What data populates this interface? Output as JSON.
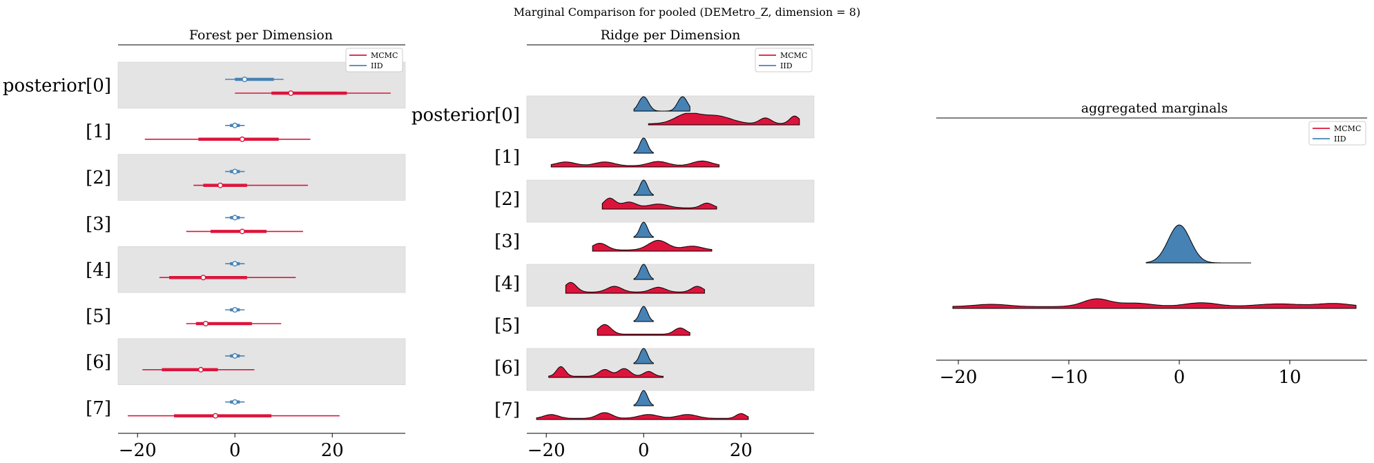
{
  "suptitle": "Marginal Comparison for pooled (DEMetro_Z, dimension = 8)",
  "colors": {
    "mcmc": "#DC143C",
    "iid": "#4682B4",
    "band": "#e4e4e4"
  },
  "chart_data": [
    {
      "type": "forest",
      "title": "Forest per Dimension",
      "row_labels": [
        "posterior[0]",
        "[1]",
        "[2]",
        "[3]",
        "[4]",
        "[5]",
        "[6]",
        "[7]"
      ],
      "xlim": [
        -24,
        35
      ],
      "xticks": [
        -20,
        0,
        20
      ],
      "legend": [
        "MCMC",
        "IID"
      ],
      "legend_loc": "upper right",
      "series": [
        {
          "name": "IID",
          "median": [
            2,
            0,
            0,
            0,
            0,
            0,
            0,
            0
          ],
          "q25": [
            0,
            -1,
            -1,
            -1,
            -1,
            -1,
            -1,
            -1
          ],
          "q75": [
            8,
            1,
            1,
            1,
            1,
            1,
            1,
            1
          ],
          "lo": [
            -2,
            -2,
            -2,
            -2,
            -2,
            -2,
            -2,
            -2
          ],
          "hi": [
            10,
            2,
            2,
            2,
            2,
            2,
            2,
            2
          ]
        },
        {
          "name": "MCMC",
          "median": [
            11.5,
            1.5,
            -3,
            1.5,
            -6.5,
            -6,
            -7,
            -4
          ],
          "q25": [
            7.5,
            -7.5,
            -6.5,
            -5,
            -13.5,
            -8,
            -15,
            -12.5
          ],
          "q75": [
            23,
            9,
            2.5,
            6.5,
            2.5,
            3.5,
            -3.5,
            7.5
          ],
          "lo": [
            0,
            -18.5,
            -8.5,
            -10,
            -15.5,
            -10,
            -19,
            -22
          ],
          "hi": [
            32,
            15.5,
            15,
            14,
            12.5,
            9.5,
            4,
            21.5
          ]
        }
      ]
    },
    {
      "type": "ridge",
      "title": "Ridge per Dimension",
      "row_labels": [
        "posterior[0]",
        "[1]",
        "[2]",
        "[3]",
        "[4]",
        "[5]",
        "[6]",
        "[7]"
      ],
      "xlim": [
        -24,
        35
      ],
      "xticks": [
        -20,
        0,
        20
      ],
      "legend": [
        "MCMC",
        "IID"
      ],
      "legend_loc": "upper right",
      "series": [
        {
          "name": "MCMC",
          "support": [
            [
              1,
              32
            ],
            [
              -19,
              15.5
            ],
            [
              -8.5,
              15
            ],
            [
              -10.5,
              14
            ],
            [
              -16,
              12.5
            ],
            [
              -9.5,
              9.5
            ],
            [
              -19.5,
              4
            ],
            [
              -22,
              21.5
            ]
          ]
        },
        {
          "name": "IID",
          "support": [
            [
              -2,
              9.5
            ],
            [
              -2,
              2
            ],
            [
              -2,
              2
            ],
            [
              -2,
              2
            ],
            [
              -2,
              2
            ],
            [
              -2,
              2
            ],
            [
              -2,
              2
            ],
            [
              -2,
              2
            ]
          ]
        }
      ]
    },
    {
      "type": "area",
      "title": "aggregated marginals",
      "xlim": [
        -22,
        17
      ],
      "xticks": [
        -20,
        -10,
        0,
        10
      ],
      "legend": [
        "MCMC",
        "IID"
      ],
      "legend_loc": "upper right",
      "series": [
        {
          "name": "MCMC",
          "support": [
            -20.5,
            16
          ],
          "peak": -7.5
        },
        {
          "name": "IID",
          "support": [
            -3,
            6.5
          ],
          "peak": 0
        }
      ]
    }
  ]
}
